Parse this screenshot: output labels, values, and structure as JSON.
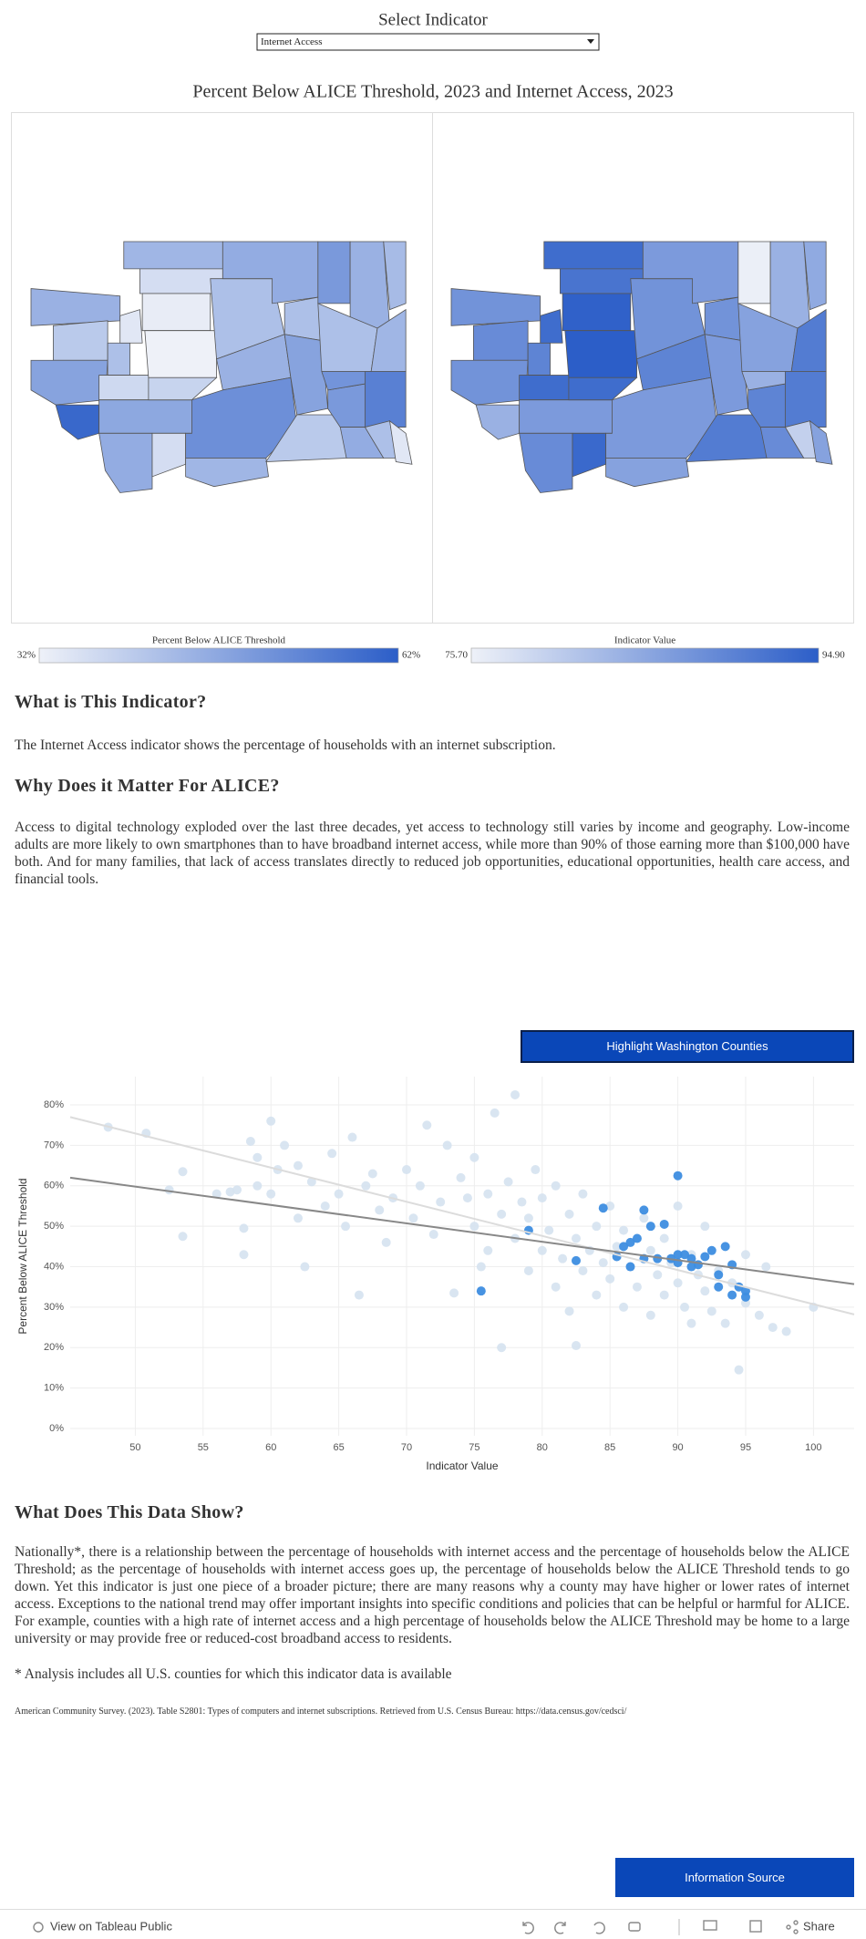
{
  "selector": {
    "title": "Select Indicator",
    "selected": "Internet Access"
  },
  "maps": {
    "title": "Percent Below ALICE Threshold, 2023 and Internet Access, 2023",
    "panels": [
      {
        "values": [
          45,
          40,
          48,
          60,
          42,
          34,
          37,
          47,
          46,
          36,
          44,
          36,
          33,
          32,
          38,
          42,
          46,
          45,
          52,
          44,
          42,
          48,
          40,
          50,
          50,
          45,
          43,
          42,
          44,
          51,
          55,
          46,
          42,
          34
        ]
      },
      {
        "values": [
          88,
          89,
          88,
          84,
          90,
          93,
          93,
          87,
          89,
          93.5,
          93,
          92,
          94.5,
          94.9,
          93,
          88,
          87,
          90,
          87,
          86,
          88,
          87,
          91,
          90,
          76,
          84,
          85,
          86,
          91,
          84,
          91,
          89,
          80,
          86
        ]
      }
    ],
    "legends": [
      {
        "title": "Percent Below ALICE Threshold",
        "min": {
          "value": 32,
          "label": "32%"
        },
        "max": {
          "value": 62,
          "label": "62%"
        },
        "colors": [
          "#eef1f8",
          "#2c5ec8"
        ]
      },
      {
        "title": "Indicator Value",
        "min": {
          "value": 75.7,
          "label": "75.70"
        },
        "max": {
          "value": 94.9,
          "label": "94.90"
        },
        "colors": [
          "#eef1f8",
          "#2c5ec8"
        ]
      }
    ]
  },
  "sections": [
    {
      "heading": "What is This Indicator?",
      "body": "The Internet Access indicator shows the percentage of households with an internet subscription."
    },
    {
      "heading": "Why Does it Matter For ALICE?",
      "body": "Access to digital technology exploded over the last three decades, yet access to technology still varies by income and geography. Low-income adults are more likely to own smartphones than to have broadband internet access, while more than 90% of those earning more than $100,000 have both. And for many families, that lack of access translates directly to reduced job opportunities, educational opportunities, health care access, and financial tools."
    },
    {
      "heading": "What Does This Data Show?",
      "body": "Nationally*, there is a relationship between the percentage of households with internet access and the percentage of households below the ALICE Threshold; as the percentage of households with internet access goes up, the percentage of households below the ALICE Threshold tends to go down. Yet this indicator is just one piece of a broader picture; there are many reasons why a county may have higher or lower rates of internet access. Exceptions to the national trend may offer important insights into specific conditions and policies that can be helpful or harmful for ALICE. For example, counties with a high rate of internet access and a high percentage of households below the ALICE Threshold may be home to a large university or may provide free or reduced-cost broadband access to residents."
    }
  ],
  "chart_data": {
    "type": "scatter",
    "button": "Highlight Washington Counties",
    "xlabel": "Indicator Value",
    "ylabel": "Percent Below ALICE Threshold",
    "xlim": [
      45.2,
      103
    ],
    "ylim": [
      -1.8,
      87
    ],
    "xticks": [
      50,
      55,
      60,
      65,
      70,
      75,
      80,
      85,
      90,
      95,
      100
    ],
    "yticks": [
      {
        "value": 0,
        "label": "0%"
      },
      {
        "value": 10,
        "label": "10%"
      },
      {
        "value": 20,
        "label": "20%"
      },
      {
        "value": 30,
        "label": "30%"
      },
      {
        "value": 40,
        "label": "40%"
      },
      {
        "value": 50,
        "label": "50%"
      },
      {
        "value": 60,
        "label": "60%"
      },
      {
        "value": 70,
        "label": "70%"
      },
      {
        "value": 80,
        "label": "80%"
      }
    ],
    "grid": true,
    "series": [
      {
        "color": "#d5e2f0",
        "x": [
          48,
          50.8,
          52.5,
          53.5,
          53.5,
          56,
          57,
          57.5,
          58,
          58,
          58.5,
          59,
          59,
          60,
          60,
          60.5,
          61,
          62,
          62,
          62.5,
          63,
          64,
          64.5,
          65,
          65.5,
          66,
          66.5,
          67,
          67.5,
          68,
          68.5,
          69,
          70,
          70.5,
          71,
          71.5,
          72,
          72.5,
          73,
          73.5,
          74,
          74.5,
          75,
          75,
          75.5,
          76,
          76,
          76.5,
          77,
          77,
          77.5,
          78,
          78,
          78.5,
          79,
          79,
          79.5,
          80,
          80,
          80.5,
          81,
          81,
          81.5,
          82,
          82,
          82.5,
          82.5,
          83,
          83,
          83.5,
          84,
          84,
          84.5,
          85,
          85,
          85.5,
          86,
          86,
          86.5,
          87,
          87.5,
          88,
          88,
          88.5,
          89,
          89,
          89.5,
          90,
          90,
          90.5,
          91,
          91,
          91.5,
          92,
          92,
          92.5,
          93,
          93.5,
          94,
          94.5,
          95,
          95,
          96,
          96.5,
          97,
          98,
          100
        ],
        "values": [
          74.5,
          73,
          59,
          63.5,
          47.5,
          58,
          58.5,
          59,
          43,
          49.5,
          71,
          60,
          67,
          76,
          58,
          64,
          70,
          65,
          52,
          40,
          61,
          55,
          68,
          58,
          50,
          72,
          33,
          60,
          63,
          54,
          46,
          57,
          64,
          52,
          60,
          75,
          48,
          56,
          70,
          33.5,
          62,
          57,
          50,
          67,
          40,
          58,
          44,
          78,
          53,
          20,
          61,
          47,
          82.5,
          56,
          39,
          52,
          64,
          44,
          57,
          49,
          35,
          60,
          42,
          53,
          29,
          20.5,
          47,
          39,
          58,
          44,
          50,
          33,
          41,
          55,
          37,
          45,
          30,
          49,
          40,
          35,
          52,
          44,
          28,
          38,
          47,
          33,
          41,
          36,
          55,
          30,
          43,
          26,
          38,
          34,
          50,
          29,
          39,
          26,
          36,
          14.5,
          31,
          43,
          28,
          40,
          25,
          24,
          30
        ]
      },
      {
        "color": "#3d8de0",
        "x": [
          84.5,
          86.5,
          87,
          87.5,
          88,
          89,
          90,
          82.5,
          75.5,
          79,
          85.5,
          86,
          86.5,
          87.5,
          88.5,
          89.5,
          90,
          90,
          91,
          91.5,
          92,
          92.5,
          93,
          93.5,
          94,
          93,
          94,
          94.5,
          95,
          95,
          91,
          90.5
        ],
        "values": [
          54.5,
          46,
          47,
          54,
          50,
          50.5,
          62.5,
          41.5,
          34,
          49,
          42.5,
          45,
          40,
          42,
          42,
          42,
          43,
          41,
          42,
          40.5,
          42.5,
          44,
          38,
          45,
          40.5,
          35,
          33,
          35,
          34,
          32.5,
          40,
          43
        ]
      }
    ],
    "trend_lines": [
      {
        "color": "#888888",
        "x": [
          45.2,
          103
        ],
        "values": [
          62,
          35.7
        ]
      },
      {
        "color": "#dcdcdc",
        "x": [
          45.2,
          103
        ],
        "values": [
          77,
          28.2
        ]
      }
    ]
  },
  "footnote": "* Analysis includes all U.S. counties for which this indicator data is available",
  "source": "American Community Survey. (2023). Table S2801: Types of computers and internet subscriptions. Retrieved from U.S. Census Bureau: https://data.census.gov/cedsci/",
  "info_button": "Information Source",
  "toolbar": {
    "view": "View on Tableau Public",
    "share": "Share"
  }
}
